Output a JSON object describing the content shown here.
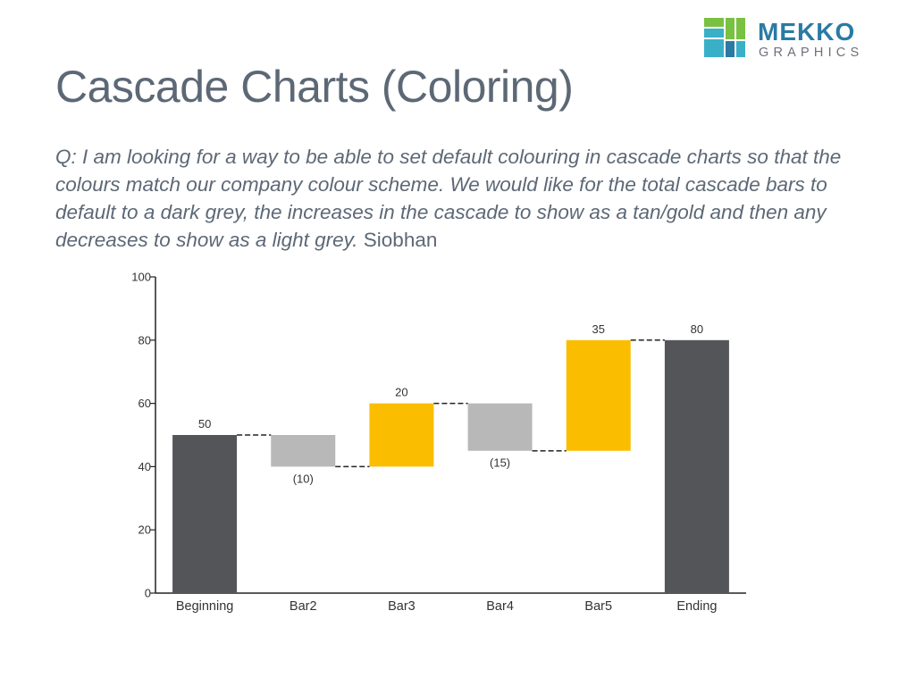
{
  "logo": {
    "brand_top": "MEKKO",
    "brand_bottom": "GRAPHICS",
    "colors": {
      "green": "#7ac143",
      "teal": "#3ab0c8",
      "navy": "#2a7aa4",
      "gray": "#6d7178"
    }
  },
  "slide": {
    "title": "Cascade Charts (Coloring)",
    "question_italic": "Q: I am looking for a way to be able to set default colouring in cascade charts so that the colours match our company colour scheme. We would like for the total cascade bars to default to a dark grey, the increases in the cascade to show as a tan/gold and then any decreases to show as a light grey.",
    "question_author": "Siobhan"
  },
  "chart_data": {
    "type": "bar",
    "subtype": "cascade",
    "categories": [
      "Beginning",
      "Bar2",
      "Bar3",
      "Bar4",
      "Bar5",
      "Ending"
    ],
    "values": [
      50,
      -10,
      20,
      -15,
      35,
      80
    ],
    "bar_kinds": [
      "total",
      "decrease",
      "increase",
      "decrease",
      "increase",
      "total"
    ],
    "data_labels": [
      "50",
      "(10)",
      "20",
      "(15)",
      "35",
      "80"
    ],
    "ylim": [
      0,
      100
    ],
    "yticks": [
      "0",
      "20",
      "40",
      "60",
      "80",
      "100"
    ],
    "title": "",
    "xlabel": "",
    "ylabel": "",
    "grid": false,
    "connectors": true,
    "colors": {
      "total": "#545559",
      "increase": "#fbbd00",
      "decrease": "#b8b8b9"
    }
  }
}
